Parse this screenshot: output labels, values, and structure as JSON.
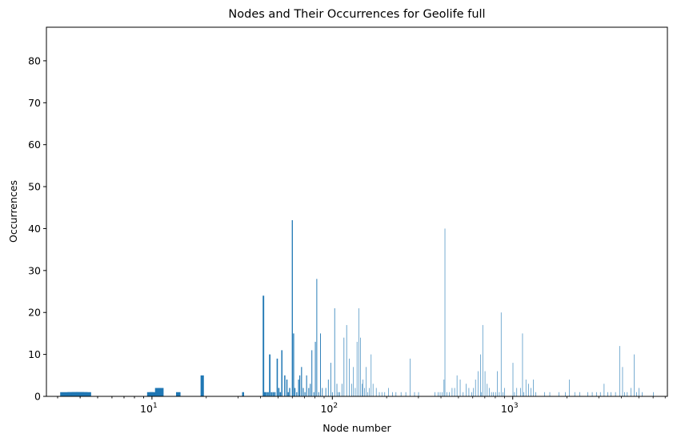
{
  "chart_data": {
    "type": "bar",
    "title": "Nodes and Their Occurrences for Geolife full",
    "xlabel": "Node number",
    "ylabel": "Occurrences",
    "xscale": "log",
    "xlim": [
      2.6,
      7200
    ],
    "ylim": [
      0,
      88
    ],
    "x_ticks": [
      {
        "value": 10,
        "base": "10",
        "exp": "1"
      },
      {
        "value": 100,
        "base": "10",
        "exp": "2"
      },
      {
        "value": 1000,
        "base": "10",
        "exp": "3"
      }
    ],
    "y_ticks": [
      "0",
      "10",
      "20",
      "30",
      "40",
      "50",
      "60",
      "70",
      "80"
    ],
    "grid": false,
    "bar_color": "#1f77b4",
    "x": [
      3.5,
      3.8,
      4.0,
      4.2,
      9.8,
      10.1,
      10.8,
      11.2,
      14.0,
      19.0,
      32.0,
      41.5,
      42.2,
      43.0,
      44.0,
      45.0,
      46.0,
      47.0,
      48.0,
      49.5,
      50.5,
      51.5,
      52.5,
      54.5,
      56.0,
      57.0,
      58.0,
      60.0,
      61.0,
      62.0,
      63.5,
      65.0,
      66.0,
      67.5,
      69.0,
      70.5,
      72.0,
      74.0,
      75.5,
      77.0,
      79.0,
      80.5,
      82.0,
      84.0,
      86.0,
      88.0,
      92.0,
      95.0,
      98.0,
      100.0,
      103.0,
      106.0,
      108.0,
      110.0,
      113.0,
      116.0,
      120.0,
      124.0,
      128.0,
      131.0,
      134.0,
      137.0,
      140.0,
      143.0,
      146.0,
      148.0,
      151.0,
      154.0,
      157.0,
      160.0,
      164.0,
      168.0,
      175.0,
      182.0,
      188.0,
      195.0,
      205.0,
      215.0,
      225.0,
      240.0,
      255.0,
      270.0,
      285.0,
      300.0,
      370.0,
      385.0,
      395.0,
      405.0,
      415.0,
      420.0,
      430.0,
      445.0,
      460.0,
      475.0,
      490.0,
      510.0,
      530.0,
      550.0,
      570.0,
      590.0,
      605.0,
      620.0,
      640.0,
      660.0,
      670.0,
      680.0,
      700.0,
      720.0,
      740.0,
      760.0,
      780.0,
      800.0,
      820.0,
      840.0,
      860.0,
      880.0,
      900.0,
      1000.0,
      1020.0,
      1050.0,
      1100.0,
      1130.0,
      1150.0,
      1180.0,
      1220.0,
      1260.0,
      1300.0,
      1340.0,
      1500.0,
      1600.0,
      1800.0,
      1950.0,
      2050.0,
      2200.0,
      2350.0,
      2600.0,
      2750.0,
      2900.0,
      3050.0,
      3200.0,
      3350.0,
      3500.0,
      3700.0,
      3900.0,
      4050.0,
      4150.0,
      4300.0,
      4500.0,
      4700.0,
      4850.0,
      5000.0,
      5200.0,
      6000.0
    ],
    "values": [
      1,
      1,
      1,
      1,
      1,
      1,
      2,
      2,
      1,
      5,
      1,
      24,
      1,
      1,
      1,
      10,
      1,
      1,
      1,
      9,
      2,
      1,
      11,
      5,
      4,
      1,
      2,
      42,
      15,
      2,
      1,
      4,
      5,
      7,
      2,
      1,
      5,
      2,
      3,
      11,
      1,
      13,
      28,
      1,
      15,
      2,
      2,
      4,
      8,
      1,
      21,
      3,
      1,
      1,
      3,
      14,
      17,
      9,
      3,
      7,
      2,
      13,
      21,
      14,
      3,
      4,
      2,
      7,
      1,
      2,
      10,
      3,
      2,
      1,
      1,
      1,
      2,
      1,
      1,
      1,
      1,
      9,
      1,
      1,
      1,
      1,
      1,
      1,
      4,
      40,
      1,
      1,
      2,
      2,
      5,
      4,
      1,
      3,
      2,
      1,
      2,
      4,
      6,
      10,
      1,
      17,
      6,
      3,
      2,
      1,
      1,
      1,
      6,
      1,
      20,
      1,
      2,
      8,
      1,
      2,
      2,
      15,
      1,
      4,
      3,
      2,
      4,
      1,
      1,
      1,
      1,
      1,
      4,
      1,
      1,
      1,
      1,
      1,
      1,
      3,
      1,
      1,
      1,
      12,
      7,
      1,
      1,
      2,
      10,
      1,
      2,
      1,
      1
    ]
  }
}
